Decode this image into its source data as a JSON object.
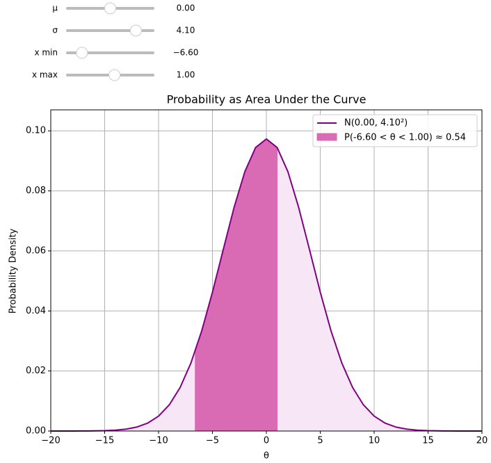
{
  "sliders": [
    {
      "label": "μ",
      "value": 0,
      "value_label": "0.00",
      "range": [
        -10,
        10
      ]
    },
    {
      "label": "σ",
      "value": 4.1,
      "value_label": "4.10",
      "range": [
        0.5,
        5
      ]
    },
    {
      "label": "x min",
      "value": -6.6,
      "value_label": "−6.60",
      "range": [
        -10,
        10
      ]
    },
    {
      "label": "x max",
      "value": 1,
      "value_label": "1.00",
      "range": [
        -10,
        10
      ]
    }
  ],
  "chart_data": {
    "type": "line",
    "title": "Probability as Area Under the Curve",
    "xlabel": "θ",
    "ylabel": "Probability Density",
    "xlim": [
      -20,
      20
    ],
    "ylim": [
      0,
      0.107
    ],
    "xticks": [
      {
        "value": -20,
        "label": "−20"
      },
      {
        "value": -15,
        "label": "−15"
      },
      {
        "value": -10,
        "label": "−10"
      },
      {
        "value": -5,
        "label": "−5"
      },
      0,
      5,
      10,
      15,
      20
    ],
    "yticks": [
      {
        "value": 0,
        "label": "0.00"
      },
      {
        "value": 0.02,
        "label": "0.02"
      },
      {
        "value": 0.04,
        "label": "0.04"
      },
      {
        "value": 0.06,
        "label": "0.06"
      },
      {
        "value": 0.08,
        "label": "0.08"
      },
      {
        "value": 0.1,
        "label": "0.10"
      }
    ],
    "grid": true,
    "legend": "upper right",
    "series": [
      {
        "name": "N(0.00, 4.10²)",
        "color": "#800080",
        "fill_color": "#f7e6f6",
        "x": [
          -20,
          -19,
          -18,
          -17,
          -16,
          -15,
          -14,
          -13,
          -12,
          -11,
          -10,
          -9,
          -8,
          -7,
          -6,
          -5,
          -4,
          -3,
          -2,
          -1,
          0,
          1,
          2,
          3,
          4,
          5,
          6,
          7,
          8,
          9,
          10,
          11,
          12,
          13,
          14,
          15,
          16,
          17,
          18,
          19,
          20
        ],
        "values": [
          0,
          0,
          1e-05,
          2e-05,
          5e-05,
          0.00012,
          0.00029,
          0.00064,
          0.00134,
          0.00266,
          0.00497,
          0.00875,
          0.0145,
          0.02265,
          0.03334,
          0.04626,
          0.06045,
          0.07444,
          0.08638,
          0.09445,
          0.0973,
          0.09445,
          0.08638,
          0.07444,
          0.06045,
          0.04626,
          0.03334,
          0.02265,
          0.0145,
          0.00875,
          0.00497,
          0.00266,
          0.00134,
          0.00064,
          0.00029,
          0.00012,
          5e-05,
          2e-05,
          1e-05,
          0,
          0
        ]
      }
    ],
    "shaded": {
      "name": "P(-6.60 < θ < 1.00) ≈ 0.54",
      "color": "#d86bb3",
      "x": [
        -6.6,
        -6,
        -5,
        -4,
        -3,
        -2,
        -1,
        0,
        1
      ],
      "values": [
        0.02663,
        0.03334,
        0.04626,
        0.06045,
        0.07444,
        0.08638,
        0.09445,
        0.0973,
        0.09445
      ]
    }
  }
}
